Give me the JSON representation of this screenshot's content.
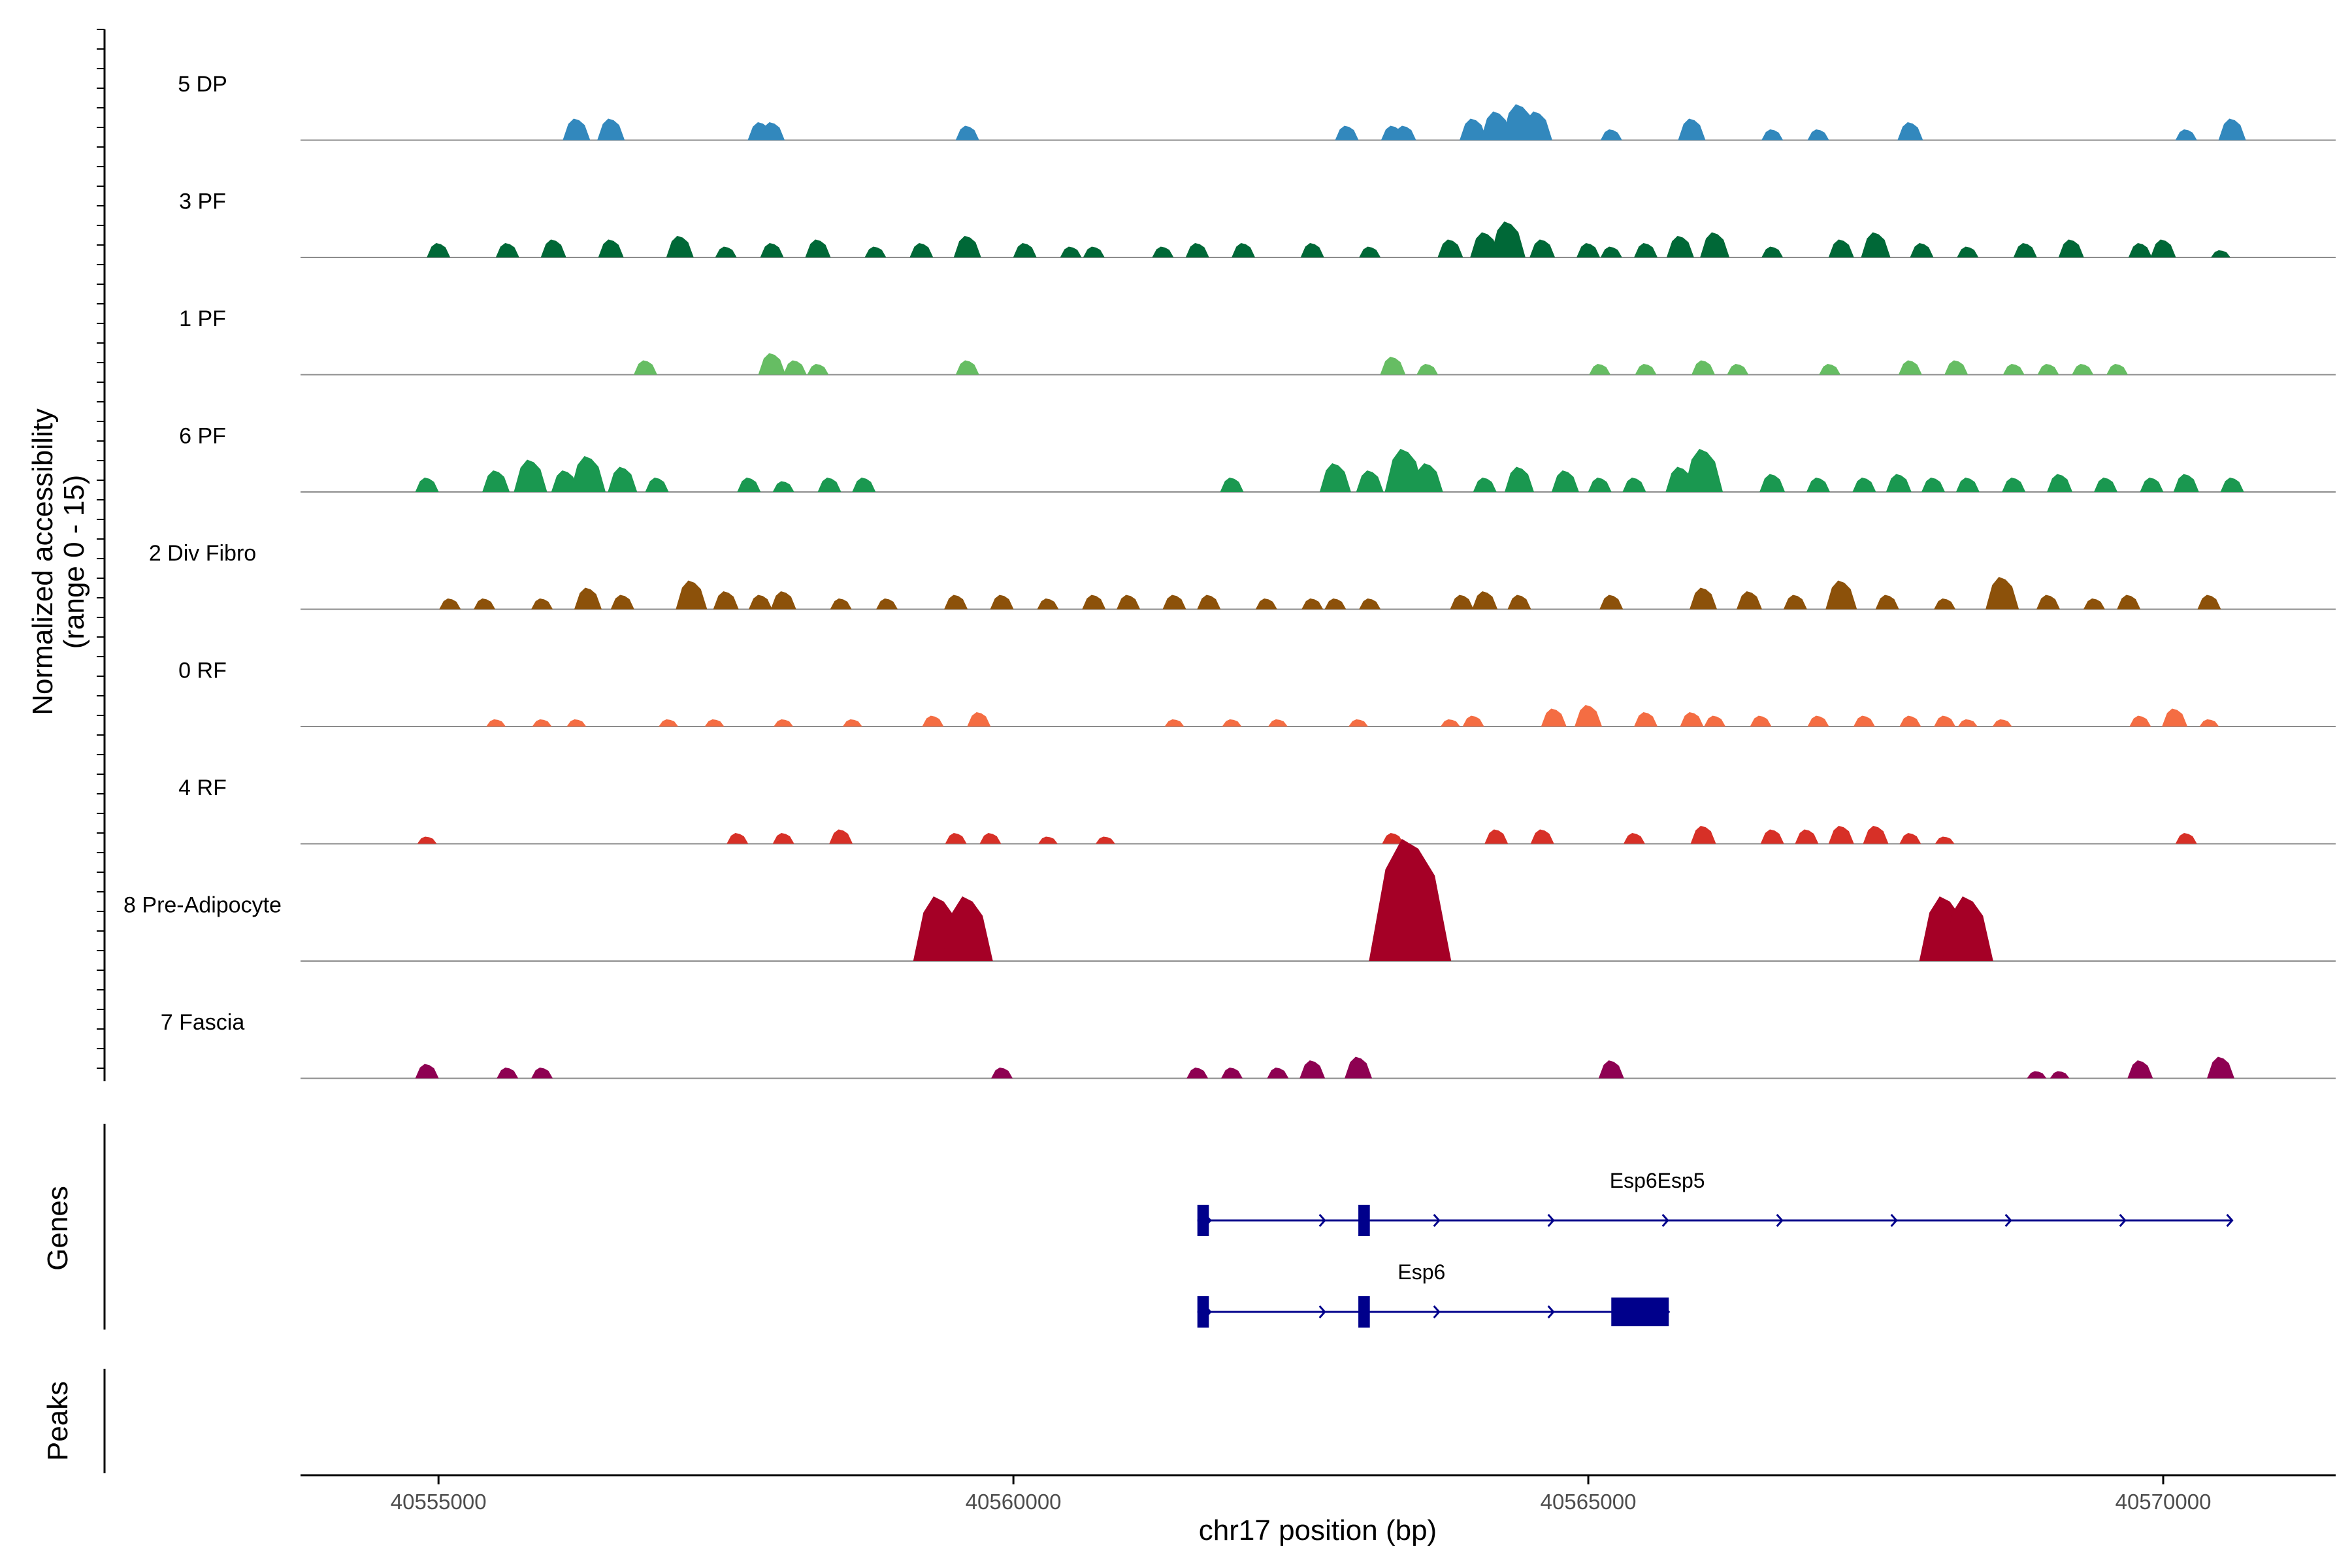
{
  "chart_data": {
    "type": "area",
    "title": "",
    "xlabel": "chr17 position (bp)",
    "ylabel_line1": "Normalized accessibility",
    "ylabel_line2": "(range 0 - 15)",
    "genes_label": "Genes",
    "peaks_label": "Peaks",
    "xlim": [
      40553800,
      40571500
    ],
    "ylim": [
      0,
      15
    ],
    "x_ticks": [
      40555000,
      40560000,
      40565000,
      40570000
    ],
    "x_tick_labels": [
      "40555000",
      "40560000",
      "40565000",
      "40570000"
    ],
    "tracks": [
      {
        "name": "5 DP",
        "color": "#3288bd",
        "peaks": [
          [
            40556200,
            3
          ],
          [
            40556500,
            3
          ],
          [
            40557800,
            2.5
          ],
          [
            40557900,
            2.5
          ],
          [
            40559600,
            2
          ],
          [
            40562900,
            2
          ],
          [
            40563300,
            2
          ],
          [
            40563400,
            2
          ],
          [
            40564000,
            3
          ],
          [
            40564200,
            4
          ],
          [
            40564400,
            5
          ],
          [
            40564550,
            4
          ],
          [
            40565200,
            1.5
          ],
          [
            40565900,
            3
          ],
          [
            40566600,
            1.5
          ],
          [
            40567000,
            1.5
          ],
          [
            40567800,
            2.5
          ],
          [
            40570200,
            1.5
          ],
          [
            40570600,
            3
          ]
        ]
      },
      {
        "name": "3 PF",
        "color": "#006837",
        "peaks": [
          [
            40555000,
            2
          ],
          [
            40555600,
            2
          ],
          [
            40556000,
            2.5
          ],
          [
            40556500,
            2.5
          ],
          [
            40557100,
            3
          ],
          [
            40557500,
            1.5
          ],
          [
            40557900,
            2
          ],
          [
            40558300,
            2.5
          ],
          [
            40558800,
            1.5
          ],
          [
            40559200,
            2
          ],
          [
            40559600,
            3
          ],
          [
            40560100,
            2
          ],
          [
            40560500,
            1.5
          ],
          [
            40560700,
            1.5
          ],
          [
            40561300,
            1.5
          ],
          [
            40561600,
            2
          ],
          [
            40562000,
            2
          ],
          [
            40562600,
            2
          ],
          [
            40563100,
            1.5
          ],
          [
            40563800,
            2.5
          ],
          [
            40564100,
            3.5
          ],
          [
            40564300,
            5
          ],
          [
            40564600,
            2.5
          ],
          [
            40565000,
            2
          ],
          [
            40565200,
            1.5
          ],
          [
            40565500,
            2
          ],
          [
            40565800,
            3
          ],
          [
            40566100,
            3.5
          ],
          [
            40566600,
            1.5
          ],
          [
            40567200,
            2.5
          ],
          [
            40567500,
            3.5
          ],
          [
            40567900,
            2
          ],
          [
            40568300,
            1.5
          ],
          [
            40568800,
            2
          ],
          [
            40569200,
            2.5
          ],
          [
            40569800,
            2
          ],
          [
            40570000,
            2.5
          ],
          [
            40570500,
            1
          ]
        ]
      },
      {
        "name": "1 PF",
        "color": "#66bd63",
        "peaks": [
          [
            40556800,
            2
          ],
          [
            40557900,
            3
          ],
          [
            40558100,
            2
          ],
          [
            40558300,
            1.5
          ],
          [
            40559600,
            2
          ],
          [
            40563300,
            2.5
          ],
          [
            40563600,
            1.5
          ],
          [
            40565100,
            1.5
          ],
          [
            40565500,
            1.5
          ],
          [
            40566000,
            2
          ],
          [
            40566300,
            1.5
          ],
          [
            40567100,
            1.5
          ],
          [
            40567800,
            2
          ],
          [
            40568200,
            2
          ],
          [
            40568700,
            1.5
          ],
          [
            40569000,
            1.5
          ],
          [
            40569300,
            1.5
          ],
          [
            40569600,
            1.5
          ]
        ]
      },
      {
        "name": "6 PF",
        "color": "#1a9850",
        "peaks": [
          [
            40554900,
            2
          ],
          [
            40555500,
            3
          ],
          [
            40555800,
            4.5
          ],
          [
            40556100,
            3
          ],
          [
            40556300,
            5
          ],
          [
            40556600,
            3.5
          ],
          [
            40556900,
            2
          ],
          [
            40557700,
            2
          ],
          [
            40558000,
            1.5
          ],
          [
            40558400,
            2
          ],
          [
            40558700,
            2
          ],
          [
            40561900,
            2
          ],
          [
            40562800,
            4
          ],
          [
            40563100,
            3
          ],
          [
            40563400,
            6
          ],
          [
            40563600,
            4
          ],
          [
            40564100,
            2
          ],
          [
            40564400,
            3.5
          ],
          [
            40564800,
            3
          ],
          [
            40565100,
            2
          ],
          [
            40565400,
            2
          ],
          [
            40565800,
            3.5
          ],
          [
            40566000,
            6
          ],
          [
            40566600,
            2.5
          ],
          [
            40567000,
            2
          ],
          [
            40567400,
            2
          ],
          [
            40567700,
            2.5
          ],
          [
            40568000,
            2
          ],
          [
            40568300,
            2
          ],
          [
            40568700,
            2
          ],
          [
            40569100,
            2.5
          ],
          [
            40569500,
            2
          ],
          [
            40569900,
            2
          ],
          [
            40570200,
            2.5
          ],
          [
            40570600,
            2
          ]
        ]
      },
      {
        "name": "2 Div Fibro",
        "color": "#8c510a",
        "peaks": [
          [
            40555100,
            1.5
          ],
          [
            40555400,
            1.5
          ],
          [
            40555900,
            1.5
          ],
          [
            40556300,
            3
          ],
          [
            40556600,
            2
          ],
          [
            40557200,
            4
          ],
          [
            40557500,
            2.5
          ],
          [
            40557800,
            2
          ],
          [
            40558000,
            2.5
          ],
          [
            40558500,
            1.5
          ],
          [
            40558900,
            1.5
          ],
          [
            40559500,
            2
          ],
          [
            40559900,
            2
          ],
          [
            40560300,
            1.5
          ],
          [
            40560700,
            2
          ],
          [
            40561000,
            2
          ],
          [
            40561400,
            2
          ],
          [
            40561700,
            2
          ],
          [
            40562200,
            1.5
          ],
          [
            40562600,
            1.5
          ],
          [
            40562800,
            1.5
          ],
          [
            40563100,
            1.5
          ],
          [
            40563900,
            2
          ],
          [
            40564100,
            2.5
          ],
          [
            40564400,
            2
          ],
          [
            40565200,
            2
          ],
          [
            40566000,
            3
          ],
          [
            40566400,
            2.5
          ],
          [
            40566800,
            2
          ],
          [
            40567200,
            4
          ],
          [
            40567600,
            2
          ],
          [
            40568100,
            1.5
          ],
          [
            40568600,
            4.5
          ],
          [
            40569000,
            2
          ],
          [
            40569400,
            1.5
          ],
          [
            40569700,
            2
          ],
          [
            40570400,
            2
          ]
        ]
      },
      {
        "name": "0 RF",
        "color": "#f46d43",
        "peaks": [
          [
            40555500,
            1
          ],
          [
            40555900,
            1
          ],
          [
            40556200,
            1
          ],
          [
            40557000,
            1
          ],
          [
            40557400,
            1
          ],
          [
            40558000,
            1
          ],
          [
            40558600,
            1
          ],
          [
            40559300,
            1.5
          ],
          [
            40559700,
            2
          ],
          [
            40561400,
            1
          ],
          [
            40561900,
            1
          ],
          [
            40562300,
            1
          ],
          [
            40563000,
            1
          ],
          [
            40563800,
            1
          ],
          [
            40564000,
            1.5
          ],
          [
            40564700,
            2.5
          ],
          [
            40565000,
            3
          ],
          [
            40565500,
            2
          ],
          [
            40565900,
            2
          ],
          [
            40566100,
            1.5
          ],
          [
            40566500,
            1.5
          ],
          [
            40567000,
            1.5
          ],
          [
            40567400,
            1.5
          ],
          [
            40567800,
            1.5
          ],
          [
            40568100,
            1.5
          ],
          [
            40568300,
            1
          ],
          [
            40568600,
            1
          ],
          [
            40569800,
            1.5
          ],
          [
            40570100,
            2.5
          ],
          [
            40570400,
            1
          ]
        ]
      },
      {
        "name": "4 RF",
        "color": "#d73027",
        "peaks": [
          [
            40554900,
            1
          ],
          [
            40557600,
            1.5
          ],
          [
            40558000,
            1.5
          ],
          [
            40558500,
            2
          ],
          [
            40559500,
            1.5
          ],
          [
            40559800,
            1.5
          ],
          [
            40560300,
            1
          ],
          [
            40560800,
            1
          ],
          [
            40563300,
            1.5
          ],
          [
            40564200,
            2
          ],
          [
            40564600,
            2
          ],
          [
            40565400,
            1.5
          ],
          [
            40566000,
            2.5
          ],
          [
            40566600,
            2
          ],
          [
            40566900,
            2
          ],
          [
            40567200,
            2.5
          ],
          [
            40567500,
            2.5
          ],
          [
            40567800,
            1.5
          ],
          [
            40568100,
            1
          ],
          [
            40570200,
            1.5
          ]
        ]
      },
      {
        "name": "8 Pre-Adipocyte",
        "color": "#a50026",
        "peaks": [
          [
            40559350,
            9
          ],
          [
            40559600,
            9
          ],
          [
            40563450,
            17
          ],
          [
            40568100,
            9
          ],
          [
            40568300,
            9
          ]
        ]
      },
      {
        "name": "7 Fascia",
        "color": "#8e0152",
        "peaks": [
          [
            40554900,
            2
          ],
          [
            40555600,
            1.5
          ],
          [
            40555900,
            1.5
          ],
          [
            40559900,
            1.5
          ],
          [
            40561600,
            1.5
          ],
          [
            40561900,
            1.5
          ],
          [
            40562300,
            1.5
          ],
          [
            40562600,
            2.5
          ],
          [
            40563000,
            3
          ],
          [
            40565200,
            2.5
          ],
          [
            40568900,
            1
          ],
          [
            40569100,
            1
          ],
          [
            40569800,
            2.5
          ],
          [
            40570500,
            3
          ]
        ]
      }
    ],
    "genes": [
      {
        "name": "Esp6Esp5",
        "start": 40561600,
        "end": 40570600,
        "exons": [
          [
            40561600,
            40561700
          ],
          [
            40563000,
            40563100
          ]
        ],
        "strand": "+"
      },
      {
        "name": "Esp6",
        "start": 40561600,
        "end": 40565700,
        "exons": [
          [
            40561600,
            40561700
          ],
          [
            40563000,
            40563100
          ],
          [
            40565200,
            40565700
          ]
        ],
        "strand": "+"
      }
    ]
  }
}
